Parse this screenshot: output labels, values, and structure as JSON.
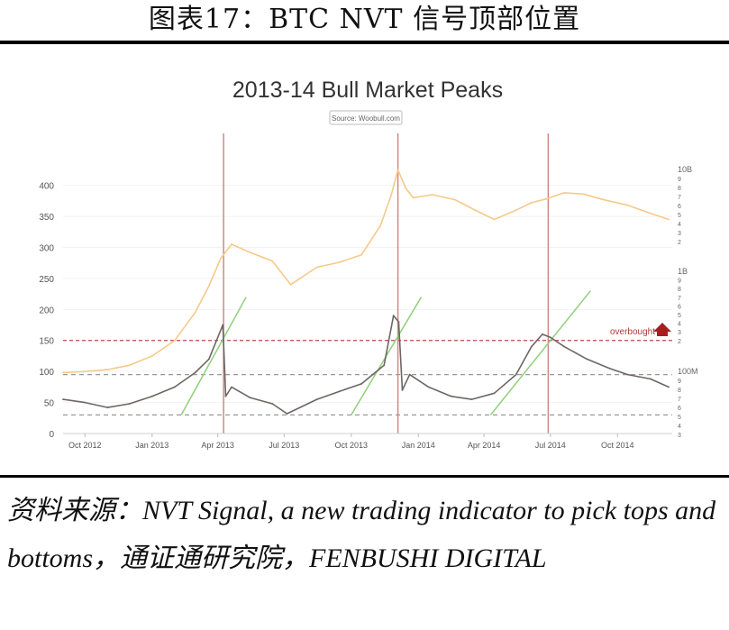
{
  "figure": {
    "title": "图表17：BTC NVT 信号顶部位置",
    "source_note": "资料来源：NVT Signal, a new trading indicator to pick tops and bottoms，通证通研究院，FENBUSHI DIGITAL"
  },
  "colors": {
    "price_line": "#f6c98a",
    "nvt_line": "#6e6664",
    "peak_line": "#c98b86",
    "trend_line": "#8fd07b",
    "overbought_line": "#b64b4b",
    "dashed_line": "#999999"
  },
  "chart_data": {
    "type": "line",
    "title": "2013-14 Bull Market Peaks",
    "subtitle": "Source: Woobull.com",
    "x_ticks": [
      "Oct 2012",
      "Jan 2013",
      "Apr 2013",
      "Jul 2013",
      "Oct 2013",
      "Jan 2014",
      "Apr 2014",
      "Jul 2014",
      "Oct 2014"
    ],
    "x_range": [
      "2012-09",
      "2014-12"
    ],
    "y_left_ticks": [
      0,
      50,
      100,
      150,
      200,
      250,
      300,
      350,
      400
    ],
    "y_left_range": [
      0,
      430
    ],
    "y_right_price_ticks": [
      "10B",
      "9",
      "8",
      "7",
      "6",
      "5",
      "4",
      "3",
      "2"
    ],
    "y_right_mid_ticks": [
      "1B",
      "9",
      "8",
      "7",
      "6",
      "5",
      "4",
      "3",
      "2"
    ],
    "y_right_low_ticks": [
      "100M",
      "9",
      "8",
      "7",
      "6",
      "5",
      "4",
      "3"
    ],
    "annotation": "overbought",
    "overbought_level": 150,
    "dashed_levels": [
      95,
      30
    ],
    "peak_dates": [
      "Apr 2013",
      "Dec 2013",
      "Jul 2014"
    ],
    "series": [
      {
        "role": "market cap",
        "x": [
          "2012-09-01",
          "2012-10-01",
          "2012-11-01",
          "2012-12-01",
          "2013-01-01",
          "2013-02-01",
          "2013-03-01",
          "2013-03-20",
          "2013-04-05",
          "2013-04-20",
          "2013-05-15",
          "2013-06-15",
          "2013-07-10",
          "2013-08-15",
          "2013-09-15",
          "2013-10-15",
          "2013-11-10",
          "2013-11-25",
          "2013-12-04",
          "2013-12-15",
          "2013-12-25",
          "2014-01-20",
          "2014-02-20",
          "2014-03-20",
          "2014-04-15",
          "2014-05-15",
          "2014-06-05",
          "2014-06-25",
          "2014-07-20",
          "2014-08-15",
          "2014-09-15",
          "2014-10-15",
          "2014-11-15",
          "2014-12-10"
        ],
        "values": [
          98,
          100,
          103,
          110,
          125,
          150,
          195,
          238,
          282,
          305,
          292,
          278,
          240,
          268,
          276,
          288,
          335,
          385,
          425,
          395,
          380,
          385,
          377,
          360,
          345,
          360,
          372,
          378,
          388,
          386,
          376,
          368,
          355,
          345
        ]
      },
      {
        "role": "NVT",
        "x": [
          "2012-09-01",
          "2012-10-01",
          "2012-11-01",
          "2012-12-01",
          "2013-01-01",
          "2013-02-01",
          "2013-03-01",
          "2013-03-20",
          "2013-04-08",
          "2013-04-12",
          "2013-04-20",
          "2013-05-15",
          "2013-06-15",
          "2013-07-05",
          "2013-08-15",
          "2013-09-15",
          "2013-10-15",
          "2013-11-15",
          "2013-11-28",
          "2013-12-05",
          "2013-12-10",
          "2013-12-20",
          "2014-01-15",
          "2014-02-15",
          "2014-03-15",
          "2014-04-15",
          "2014-05-15",
          "2014-06-05",
          "2014-06-20",
          "2014-07-01",
          "2014-07-20",
          "2014-08-20",
          "2014-09-20",
          "2014-10-15",
          "2014-11-15",
          "2014-12-10"
        ],
        "values": [
          55,
          50,
          42,
          48,
          60,
          75,
          98,
          120,
          175,
          60,
          75,
          58,
          48,
          32,
          55,
          68,
          80,
          110,
          190,
          180,
          70,
          95,
          75,
          60,
          55,
          65,
          95,
          140,
          160,
          155,
          140,
          120,
          105,
          95,
          88,
          75
        ]
      }
    ]
  }
}
